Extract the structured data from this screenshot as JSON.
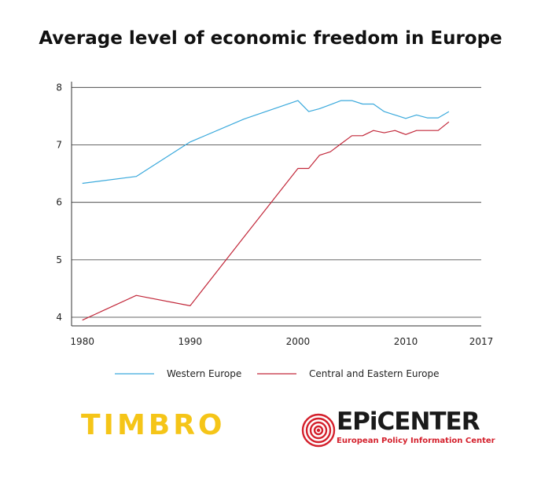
{
  "chart_data": {
    "type": "line",
    "title": "Average level of economic freedom in Europe",
    "xlabel": "",
    "ylabel": "",
    "xlim": [
      1979,
      2017
    ],
    "ylim": [
      3.85,
      8.1
    ],
    "x_ticks": [
      "1980",
      "1990",
      "2000",
      "2010",
      "2017"
    ],
    "y_ticks": [
      "4",
      "5",
      "6",
      "7",
      "8"
    ],
    "grid": "horizontal",
    "legend_position": "bottom",
    "series": [
      {
        "name": "Western Europe",
        "color": "#3aa9dc",
        "points": [
          [
            1980,
            6.33
          ],
          [
            1985,
            6.45
          ],
          [
            1990,
            7.05
          ],
          [
            1995,
            7.45
          ],
          [
            2000,
            7.77
          ],
          [
            2001,
            7.58
          ],
          [
            2002,
            7.63
          ],
          [
            2003,
            7.7
          ],
          [
            2004,
            7.77
          ],
          [
            2005,
            7.77
          ],
          [
            2006,
            7.71
          ],
          [
            2007,
            7.71
          ],
          [
            2008,
            7.58
          ],
          [
            2009,
            7.52
          ],
          [
            2010,
            7.46
          ],
          [
            2011,
            7.52
          ],
          [
            2012,
            7.47
          ],
          [
            2013,
            7.47
          ],
          [
            2014,
            7.58
          ]
        ]
      },
      {
        "name": "Central and Eastern Europe",
        "color": "#c2283a",
        "points": [
          [
            1980,
            3.95
          ],
          [
            1985,
            4.38
          ],
          [
            1990,
            4.2
          ],
          [
            1995,
            5.4
          ],
          [
            2000,
            6.59
          ],
          [
            2001,
            6.59
          ],
          [
            2002,
            6.82
          ],
          [
            2003,
            6.88
          ],
          [
            2004,
            7.02
          ],
          [
            2005,
            7.16
          ],
          [
            2006,
            7.16
          ],
          [
            2007,
            7.25
          ],
          [
            2008,
            7.21
          ],
          [
            2009,
            7.25
          ],
          [
            2010,
            7.18
          ],
          [
            2011,
            7.25
          ],
          [
            2012,
            7.25
          ],
          [
            2013,
            7.25
          ],
          [
            2014,
            7.4
          ]
        ]
      }
    ]
  },
  "logos": {
    "timbro": {
      "text": "TIMBRO",
      "color": "#f5c518"
    },
    "epicenter": {
      "text": "EPiCENTER",
      "subtitle": "European Policy Information Center",
      "accent_color": "#d4202c",
      "icon": "concentric-circles-icon"
    }
  }
}
